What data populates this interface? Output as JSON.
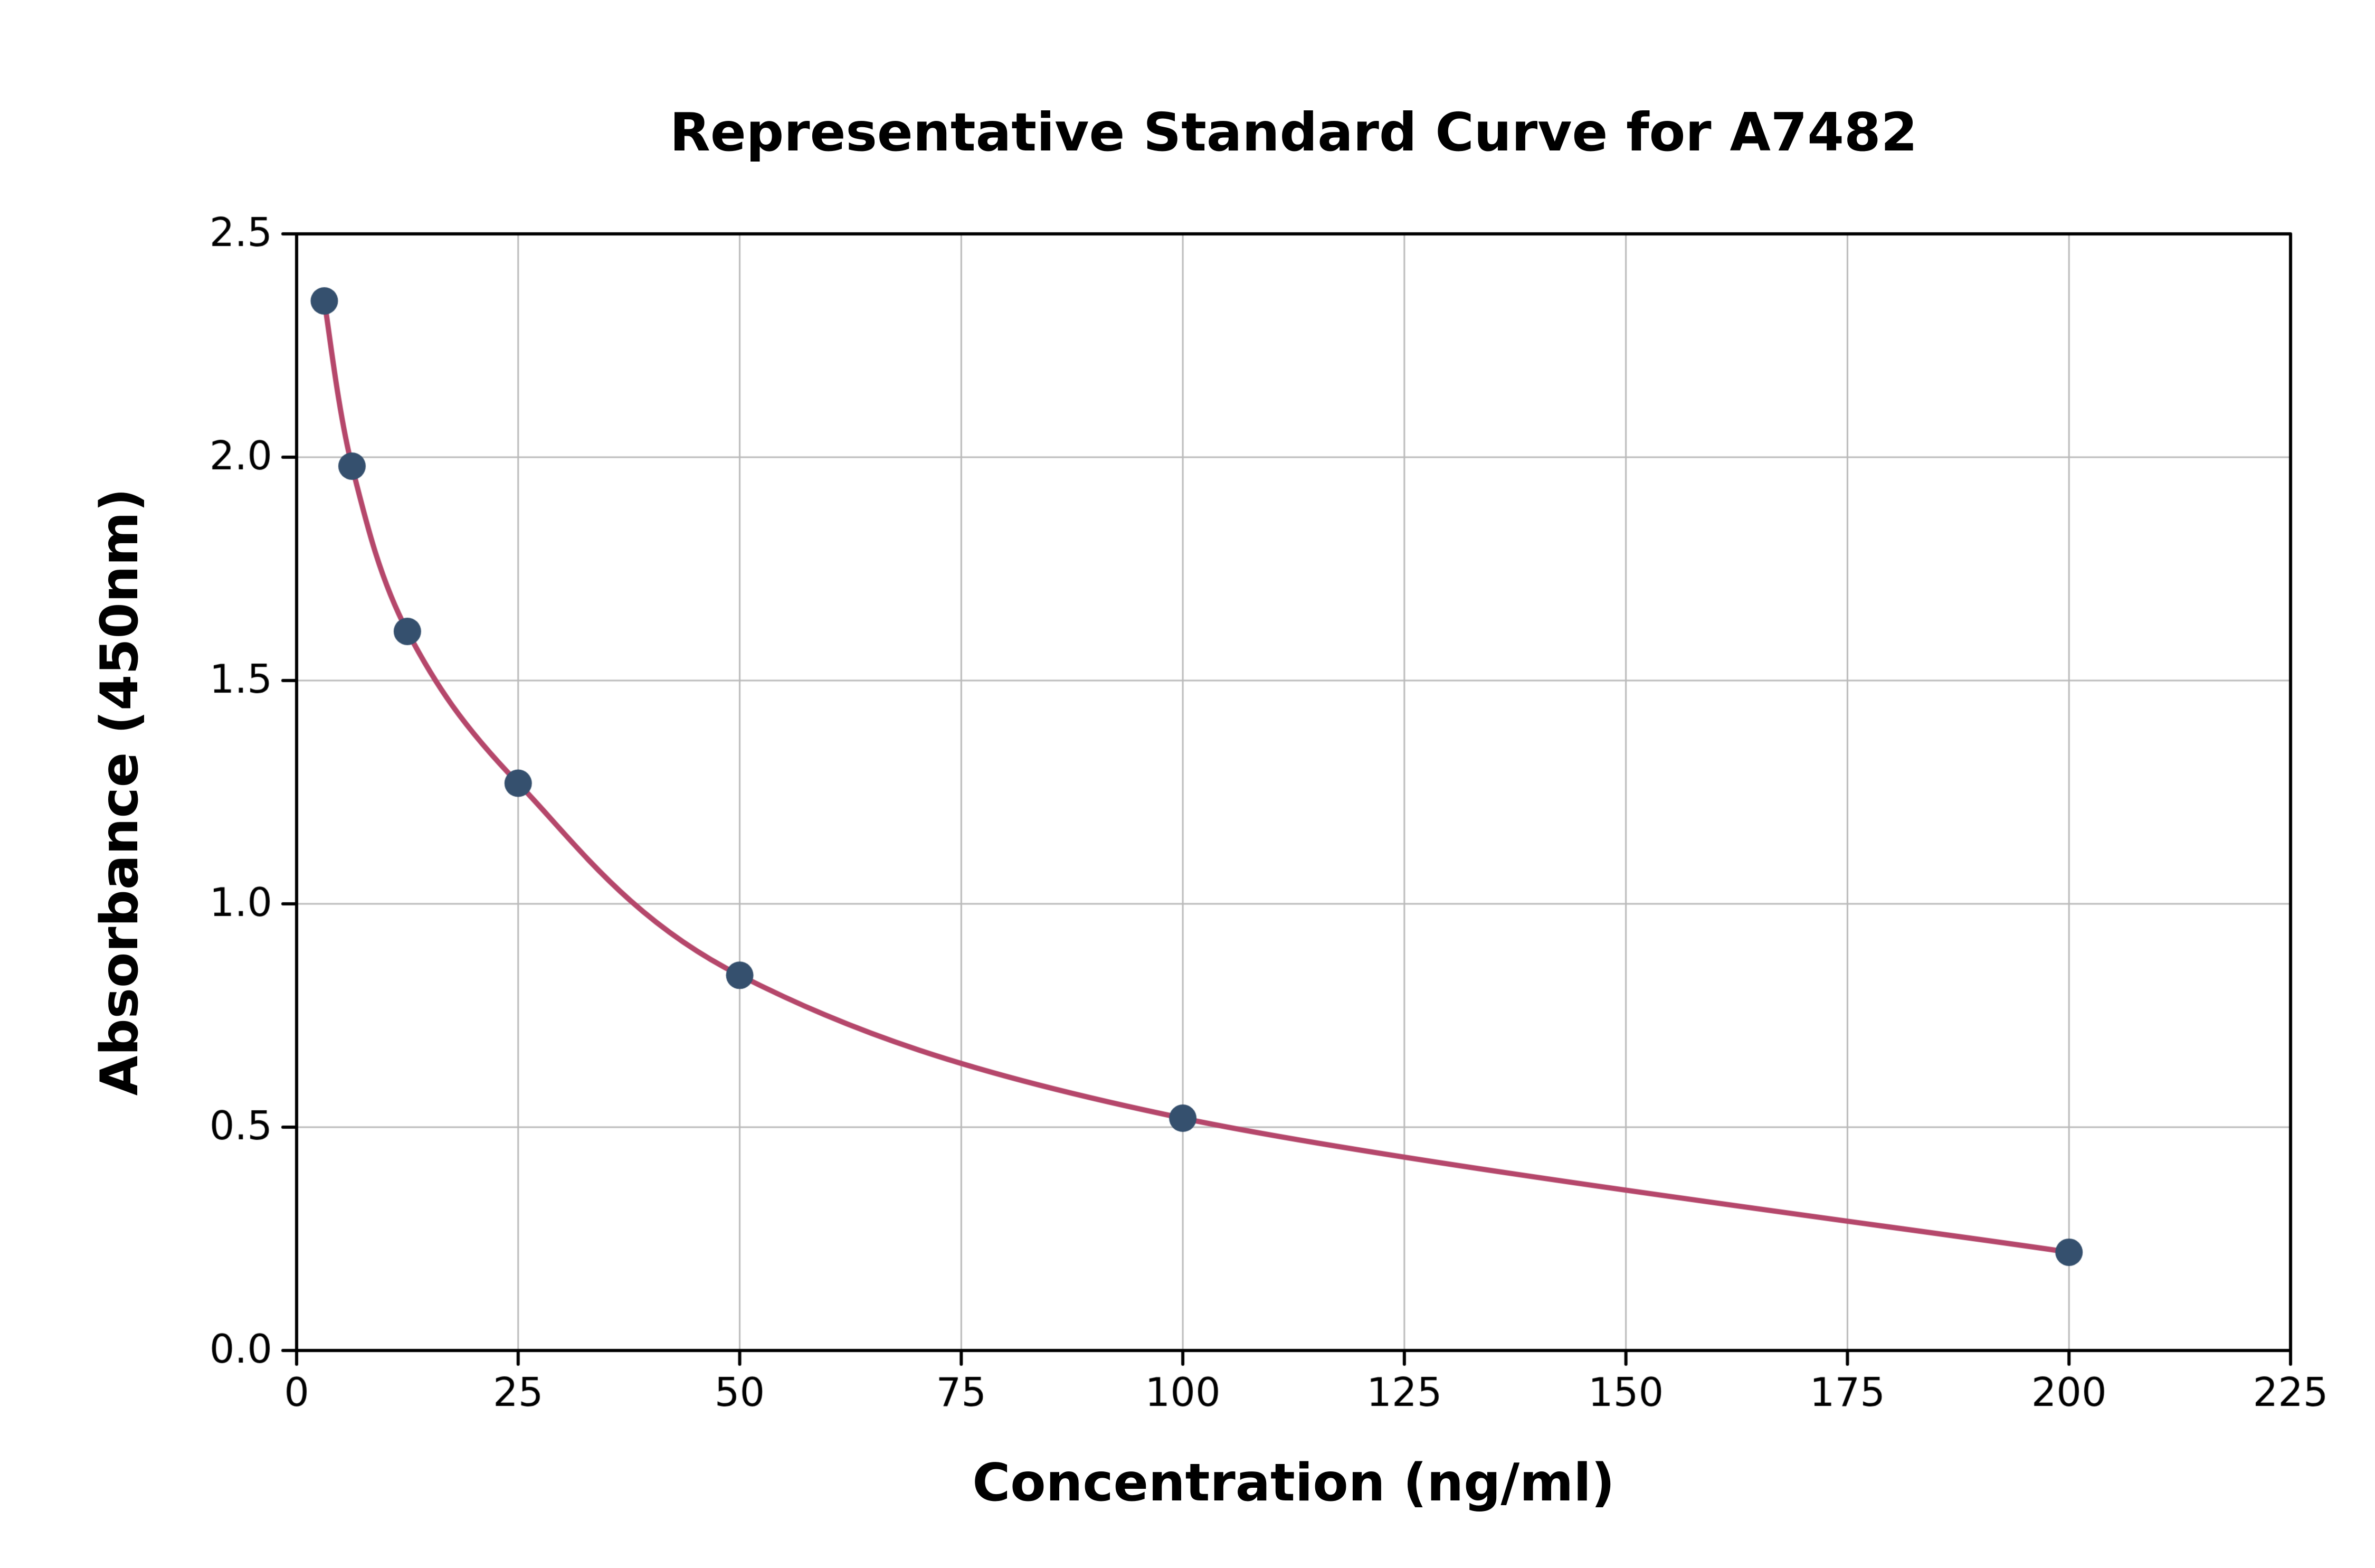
{
  "chart_data": {
    "type": "scatter",
    "title": "Representative Standard Curve for A7482",
    "xlabel": "Concentration (ng/ml)",
    "ylabel": "Absorbance (450nm)",
    "xlim": [
      0,
      225
    ],
    "ylim": [
      0,
      2.5
    ],
    "x_tick_values": [
      0,
      25,
      50,
      75,
      100,
      125,
      150,
      175,
      200,
      225
    ],
    "x_tick_labels": [
      "0",
      "25",
      "50",
      "75",
      "100",
      "125",
      "150",
      "175",
      "200",
      "225"
    ],
    "y_tick_values": [
      0.0,
      0.5,
      1.0,
      1.5,
      2.0,
      2.5
    ],
    "y_tick_labels": [
      "0.0",
      "0.5",
      "1.0",
      "1.5",
      "2.0",
      "2.5"
    ],
    "grid": true,
    "legend": "none",
    "series": [
      {
        "name": "standard-points",
        "type": "scatter",
        "x": [
          3.125,
          6.25,
          12.5,
          25,
          50,
          100,
          200
        ],
        "y": [
          2.35,
          1.98,
          1.61,
          1.27,
          0.84,
          0.52,
          0.22
        ],
        "color": "#35506e"
      },
      {
        "name": "fitted-curve",
        "type": "smooth-line",
        "x": [
          3.125,
          6.25,
          12.5,
          25,
          50,
          100,
          200
        ],
        "y": [
          2.35,
          1.98,
          1.61,
          1.27,
          0.84,
          0.52,
          0.22
        ],
        "color": "#b5476b"
      }
    ],
    "colors": {
      "grid": "#bababa",
      "axis": "#000000",
      "text": "#000000",
      "background": "#ffffff"
    }
  }
}
